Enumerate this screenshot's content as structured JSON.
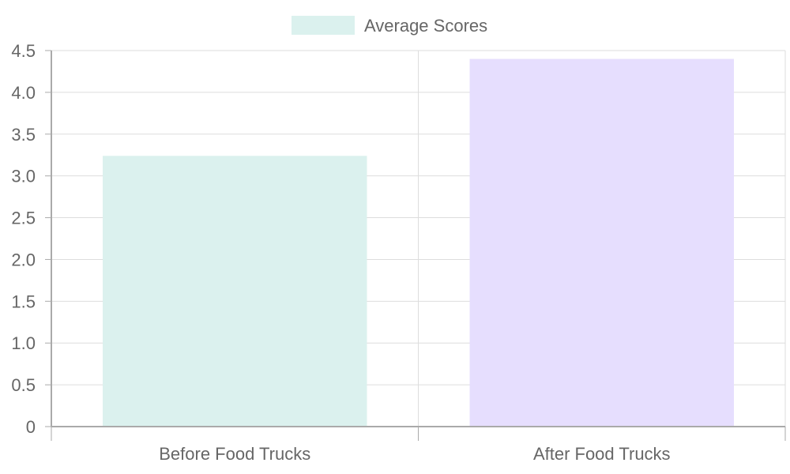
{
  "chart_data": {
    "type": "bar",
    "categories": [
      "Before Food Trucks",
      "After Food Trucks"
    ],
    "series": [
      {
        "name": "Average Scores",
        "values": [
          3.24,
          4.4
        ],
        "colors": [
          "#dbf1ee",
          "#e6defe"
        ]
      }
    ],
    "ylim": [
      0,
      4.5
    ],
    "yticks": [
      "0",
      "0.5",
      "1.0",
      "1.5",
      "2.0",
      "2.5",
      "3.0",
      "3.5",
      "4.0",
      "4.5"
    ],
    "grid": true,
    "legend_position": "top-center",
    "legend_swatch_color": "#dbf1ee"
  }
}
